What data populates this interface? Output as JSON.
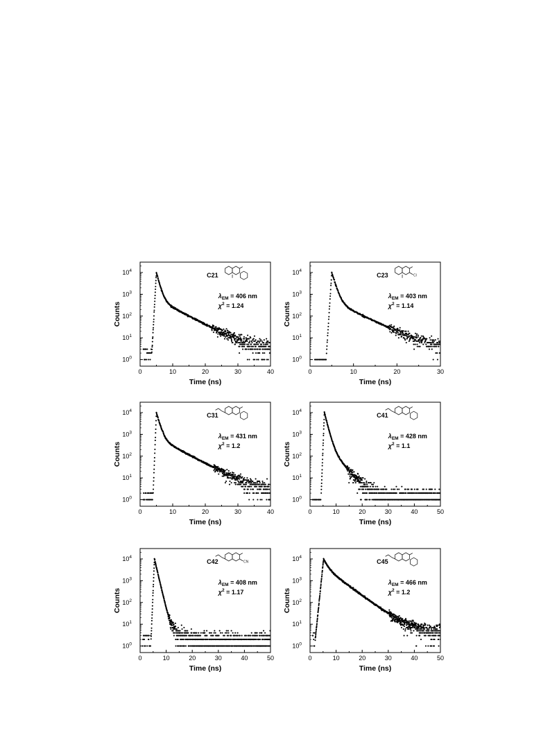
{
  "chart_data": [
    {
      "type": "scatter",
      "label": "C21",
      "xlabel": "Time (ns)",
      "ylabel": "Counts",
      "xlim": [
        0,
        40
      ],
      "xticks": [
        "0",
        "10",
        "20",
        "30",
        "40"
      ],
      "ylog": true,
      "ylim": [
        0.5,
        30000
      ],
      "yticks": [
        {
          "base": "10",
          "exp": "0"
        },
        {
          "base": "10",
          "exp": "1"
        },
        {
          "base": "10",
          "exp": "2"
        },
        {
          "base": "10",
          "exp": "3"
        },
        {
          "base": "10",
          "exp": "4"
        }
      ],
      "lambda_label": "λ",
      "lambda_sub": "EM",
      "lambda_value": " = 406 nm",
      "chi_label": "χ",
      "chi_sup": "2",
      "chi_value": " = 1.24",
      "molecule": "3-phenyl-4-methylcoumarin",
      "decay": {
        "t_peak": 5.0,
        "peak": 10000,
        "rise_start": 3.6,
        "components": [
          [
            0.94,
            0.75
          ],
          [
            0.06,
            5.5
          ]
        ],
        "baseline": 2.5,
        "tail_end": 40,
        "pre_counts": [
          1,
          2,
          3
        ]
      }
    },
    {
      "type": "scatter",
      "label": "C23",
      "xlabel": "Time (ns)",
      "ylabel": "Counts",
      "xlim": [
        0,
        30
      ],
      "xticks": [
        "0",
        "10",
        "20",
        "30"
      ],
      "ylog": true,
      "ylim": [
        0.5,
        30000
      ],
      "yticks": [
        {
          "base": "10",
          "exp": "0"
        },
        {
          "base": "10",
          "exp": "1"
        },
        {
          "base": "10",
          "exp": "2"
        },
        {
          "base": "10",
          "exp": "3"
        },
        {
          "base": "10",
          "exp": "4"
        }
      ],
      "lambda_label": "λ",
      "lambda_sub": "EM",
      "lambda_value": " = 403 nm",
      "chi_label": "χ",
      "chi_sup": "2",
      "chi_value": " = 1.14",
      "molecule": "3-(4-chlorophenyl)-4-methylcoumarin",
      "molecule_sub_label": "Cl",
      "decay": {
        "t_peak": 5.0,
        "peak": 10000,
        "rise_start": 3.8,
        "components": [
          [
            0.95,
            0.65
          ],
          [
            0.05,
            4.5
          ]
        ],
        "baseline": 2.5,
        "tail_end": 30,
        "pre_counts": [
          1
        ]
      }
    },
    {
      "type": "scatter",
      "label": "C31",
      "xlabel": "Time (ns)",
      "ylabel": "Counts",
      "xlim": [
        0,
        40
      ],
      "xticks": [
        "0",
        "10",
        "20",
        "30",
        "40"
      ],
      "ylog": true,
      "ylim": [
        0.5,
        30000
      ],
      "yticks": [
        {
          "base": "10",
          "exp": "0"
        },
        {
          "base": "10",
          "exp": "1"
        },
        {
          "base": "10",
          "exp": "2"
        },
        {
          "base": "10",
          "exp": "3"
        },
        {
          "base": "10",
          "exp": "4"
        }
      ],
      "lambda_label": "λ",
      "lambda_sub": "EM",
      "lambda_value": " = 431 nm",
      "chi_label": "χ",
      "chi_sup": "2",
      "chi_value": " = 1.2",
      "molecule": "7-acetoxy-3-phenylcoumarin",
      "decay": {
        "t_peak": 5.0,
        "peak": 10000,
        "rise_start": 4.0,
        "components": [
          [
            0.93,
            0.8
          ],
          [
            0.07,
            5.5
          ]
        ],
        "baseline": 1.6,
        "tail_end": 40,
        "pre_counts": [
          1,
          2
        ]
      }
    },
    {
      "type": "scatter",
      "label": "C41",
      "xlabel": "Time (ns)",
      "ylabel": "Counts",
      "xlim": [
        0,
        50
      ],
      "xticks": [
        "0",
        "10",
        "20",
        "30",
        "40",
        "50"
      ],
      "ylog": true,
      "ylim": [
        0.5,
        30000
      ],
      "yticks": [
        {
          "base": "10",
          "exp": "0"
        },
        {
          "base": "10",
          "exp": "1"
        },
        {
          "base": "10",
          "exp": "2"
        },
        {
          "base": "10",
          "exp": "3"
        },
        {
          "base": "10",
          "exp": "4"
        }
      ],
      "lambda_label": "λ",
      "lambda_sub": "EM",
      "lambda_value": " = 428 nm",
      "chi_label": "χ",
      "chi_sup": "2",
      "chi_value": " = 1.1",
      "molecule": "7-acetoxy-3-phenylcoumarin",
      "decay": {
        "t_peak": 5.5,
        "peak": 10000,
        "rise_start": 4.3,
        "components": [
          [
            0.96,
            0.9
          ],
          [
            0.04,
            3.2
          ]
        ],
        "baseline": 0.9,
        "tail_end": 50,
        "pre_counts": [
          1
        ]
      }
    },
    {
      "type": "scatter",
      "label": "C42",
      "xlabel": "Time (ns)",
      "ylabel": "Counts",
      "xlim": [
        0,
        50
      ],
      "xticks": [
        "0",
        "10",
        "20",
        "30",
        "40",
        "50"
      ],
      "ylog": true,
      "ylim": [
        0.5,
        30000
      ],
      "yticks": [
        {
          "base": "10",
          "exp": "0"
        },
        {
          "base": "10",
          "exp": "1"
        },
        {
          "base": "10",
          "exp": "2"
        },
        {
          "base": "10",
          "exp": "3"
        },
        {
          "base": "10",
          "exp": "4"
        }
      ],
      "lambda_label": "λ",
      "lambda_sub": "EM",
      "lambda_value": " = 408 nm",
      "chi_label": "χ",
      "chi_sup": "2",
      "chi_value": " = 1.17",
      "molecule": "7-acetoxy-3-cyanocoumarin",
      "molecule_sub_label": "CN",
      "decay": {
        "t_peak": 5.5,
        "peak": 10000,
        "rise_start": 4.2,
        "components": [
          [
            0.998,
            0.85
          ],
          [
            0.002,
            4.0
          ]
        ],
        "baseline": 1.6,
        "tail_end": 50,
        "pre_counts": [
          1,
          2,
          3
        ]
      }
    },
    {
      "type": "scatter",
      "label": "C45",
      "xlabel": "Time (ns)",
      "ylabel": "Counts",
      "xlim": [
        0,
        50
      ],
      "xticks": [
        "0",
        "10",
        "20",
        "30",
        "40",
        "50"
      ],
      "ylog": true,
      "ylim": [
        0.5,
        30000
      ],
      "yticks": [
        {
          "base": "10",
          "exp": "0"
        },
        {
          "base": "10",
          "exp": "1"
        },
        {
          "base": "10",
          "exp": "2"
        },
        {
          "base": "10",
          "exp": "3"
        },
        {
          "base": "10",
          "exp": "4"
        }
      ],
      "lambda_label": "λ",
      "lambda_sub": "EM",
      "lambda_value": " = 466 nm",
      "chi_label": "χ",
      "chi_sup": "2",
      "chi_value": " = 1.2",
      "molecule": "7-acetoxy-3-acetylcoumarin",
      "decay": {
        "t_peak": 5.2,
        "peak": 10000,
        "rise_start": 2.0,
        "components": [
          [
            0.6,
            1.3
          ],
          [
            0.4,
            5.0
          ]
        ],
        "baseline": 4,
        "tail_end": 50,
        "pre_counts": [
          1,
          2,
          3,
          4
        ]
      }
    }
  ]
}
